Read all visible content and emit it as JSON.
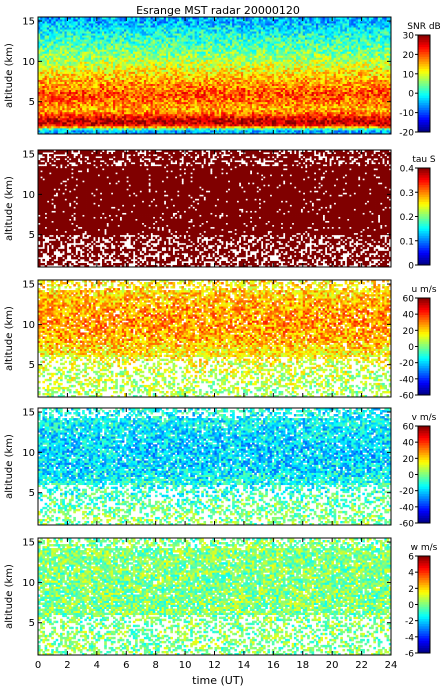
{
  "title": "Esrange MST radar 20000120",
  "xlabel": "time (UT)",
  "x_ticks": [
    "0",
    "2",
    "4",
    "6",
    "8",
    "10",
    "12",
    "14",
    "16",
    "18",
    "20",
    "22",
    "24"
  ],
  "chart_data": [
    {
      "type": "heatmap",
      "key": "snr",
      "ylabel": "altitude (km)",
      "y_ticks": [
        "5",
        "10",
        "15"
      ],
      "ylim": [
        1,
        15.5
      ],
      "xlim": [
        0,
        24
      ],
      "colorbar": {
        "label": "SNR dB",
        "range": [
          -20,
          30
        ],
        "ticks": [
          "30",
          "20",
          "10",
          "0",
          "-10",
          "-20"
        ]
      },
      "profile": [
        {
          "alt": 1.5,
          "value": -5
        },
        {
          "alt": 2.0,
          "value": 22
        },
        {
          "alt": 2.5,
          "value": 28
        },
        {
          "alt": 3.0,
          "value": 24
        },
        {
          "alt": 4.0,
          "value": 15
        },
        {
          "alt": 5.0,
          "value": 18
        },
        {
          "alt": 6.0,
          "value": 20
        },
        {
          "alt": 7.0,
          "value": 17
        },
        {
          "alt": 8.0,
          "value": 14
        },
        {
          "alt": 9.0,
          "value": 11
        },
        {
          "alt": 10.0,
          "value": 8
        },
        {
          "alt": 11.0,
          "value": 5
        },
        {
          "alt": 12.0,
          "value": 3
        },
        {
          "alt": 13.0,
          "value": 1
        },
        {
          "alt": 14.0,
          "value": -2
        },
        {
          "alt": 15.0,
          "value": -5
        }
      ]
    },
    {
      "type": "heatmap",
      "key": "tau",
      "ylabel": "altitude (km)",
      "y_ticks": [
        "5",
        "10",
        "15"
      ],
      "ylim": [
        1,
        15.5
      ],
      "xlim": [
        0,
        24
      ],
      "colorbar": {
        "label": "tau S",
        "range": [
          0,
          0.4
        ],
        "ticks": [
          "0.4",
          "0.3",
          "0.2",
          "0.1",
          "0"
        ]
      },
      "profile": [
        {
          "alt": 2.0,
          "value": 0.4
        },
        {
          "alt": 6.0,
          "value": 0.4
        },
        {
          "alt": 10.0,
          "value": 0.4
        },
        {
          "alt": 13.0,
          "value": 0.4
        },
        {
          "alt": 15.0,
          "value": 0.4
        }
      ]
    },
    {
      "type": "heatmap",
      "key": "u",
      "ylabel": "altitude (km)",
      "y_ticks": [
        "5",
        "10",
        "15"
      ],
      "ylim": [
        1,
        15.5
      ],
      "xlim": [
        0,
        24
      ],
      "colorbar": {
        "label": "u m/s",
        "range": [
          -60,
          60
        ],
        "ticks": [
          "60",
          "40",
          "20",
          "0",
          "-20",
          "-40",
          "-60"
        ]
      },
      "profile": [
        {
          "alt": 2.0,
          "value": 5
        },
        {
          "alt": 4.0,
          "value": 8
        },
        {
          "alt": 6.0,
          "value": 15
        },
        {
          "alt": 8.0,
          "value": 24
        },
        {
          "alt": 10.0,
          "value": 28
        },
        {
          "alt": 12.0,
          "value": 26
        },
        {
          "alt": 14.0,
          "value": 20
        },
        {
          "alt": 15.0,
          "value": 18
        }
      ]
    },
    {
      "type": "heatmap",
      "key": "v",
      "ylabel": "altitude (km)",
      "y_ticks": [
        "5",
        "10",
        "15"
      ],
      "ylim": [
        1,
        15.5
      ],
      "xlim": [
        0,
        24
      ],
      "colorbar": {
        "label": "v m/s",
        "range": [
          -60,
          60
        ],
        "ticks": [
          "60",
          "40",
          "20",
          "0",
          "-20",
          "-40",
          "-60"
        ]
      },
      "profile": [
        {
          "alt": 2.0,
          "value": 0
        },
        {
          "alt": 4.0,
          "value": -5
        },
        {
          "alt": 6.0,
          "value": -12
        },
        {
          "alt": 8.0,
          "value": -18
        },
        {
          "alt": 10.0,
          "value": -20
        },
        {
          "alt": 12.0,
          "value": -18
        },
        {
          "alt": 14.0,
          "value": -15
        },
        {
          "alt": 15.0,
          "value": -14
        }
      ]
    },
    {
      "type": "heatmap",
      "key": "w",
      "ylabel": "altitude (km)",
      "y_ticks": [
        "5",
        "10",
        "15"
      ],
      "ylim": [
        1,
        15.5
      ],
      "xlim": [
        0,
        24
      ],
      "colorbar": {
        "label": "w m/s",
        "range": [
          -6,
          6
        ],
        "ticks": [
          "6",
          "4",
          "2",
          "0",
          "-2",
          "-4",
          "-6"
        ]
      },
      "profile": [
        {
          "alt": 2.0,
          "value": 0
        },
        {
          "alt": 6.0,
          "value": 0
        },
        {
          "alt": 10.0,
          "value": 0
        },
        {
          "alt": 14.0,
          "value": 0
        }
      ]
    }
  ]
}
